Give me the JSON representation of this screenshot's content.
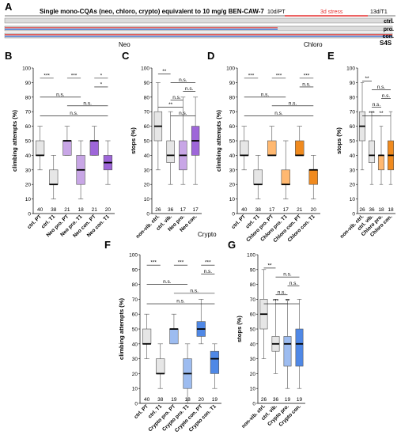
{
  "colors": {
    "gray": "#e6e6e6",
    "neo": "#c8a6e6",
    "neo_dark": "#9e66d9",
    "chloro": "#ffb870",
    "chloro_dark": "#f08a1e",
    "crypto": "#9dbcf0",
    "crypto_dark": "#4f88e6",
    "stress_red": "#e53030",
    "timeline_blue": "#5b88d8",
    "timeline_red": "#e05a5a"
  },
  "panelA": {
    "letter": "A",
    "title": "Single mono-CQAs (neo, chloro, crypto) equivalent to 10 mg/g BEN-CAW-7",
    "t_pt": "10d/PT",
    "t_stress": "3d stress",
    "t_t1": "13d/T1",
    "rows": [
      "ctrl.",
      "pro.",
      "con."
    ],
    "s4s": "S4S"
  },
  "group_labels": {
    "neo": "Neo",
    "chloro": "Chloro",
    "crypto": "Crypto"
  },
  "panelB": {
    "letter": "B",
    "ylabel": "climbing attempts (%)",
    "ticks": [
      "0",
      "10",
      "20",
      "30",
      "40",
      "50",
      "60",
      "70",
      "80",
      "90",
      "100"
    ],
    "xlabels": [
      "ctrl. PT",
      "ctrl. T1",
      "Neo pro. PT",
      "Neo pro. T1",
      "Neo con. PT",
      "Neo con. T1"
    ],
    "n": [
      "40",
      "38",
      "21",
      "18",
      "21",
      "20"
    ],
    "sig": [
      "n.s.",
      "n.s.",
      "n.s.",
      "*",
      "***",
      "***",
      "*"
    ]
  },
  "panelC": {
    "letter": "C",
    "ylabel": "stops (%)",
    "ticks": [
      "0",
      "10",
      "20",
      "30",
      "40",
      "50",
      "60",
      "70",
      "80",
      "90",
      "100"
    ],
    "xlabels": [
      "non-vib. ctrl.",
      "ctrl. vib.",
      "Neo pro.",
      "Neo con."
    ],
    "n": [
      "26",
      "36",
      "17",
      "17"
    ],
    "sig": [
      "n.s.",
      "**",
      "n.s.",
      "n.s.",
      "n.s.",
      "**"
    ]
  },
  "panelD": {
    "letter": "D",
    "ylabel": "climbing attempts (%)",
    "ticks": [
      "0",
      "10",
      "20",
      "30",
      "40",
      "50",
      "60",
      "70",
      "80",
      "90",
      "100"
    ],
    "xlabels": [
      "ctrl. PT",
      "ctrl. T1",
      "Chloro pro. PT",
      "Chloro pro. T1",
      "Chloro con. PT",
      "Chloro con. T1"
    ],
    "n": [
      "40",
      "38",
      "17",
      "17",
      "21",
      "20"
    ],
    "sig": [
      "n.s.",
      "n.s.",
      "n.s.",
      "n.s.",
      "***",
      "***",
      "***"
    ]
  },
  "panelE": {
    "letter": "E",
    "ylabel": "stops (%)",
    "ticks": [
      "0",
      "10",
      "20",
      "30",
      "40",
      "50",
      "60",
      "70",
      "80",
      "90",
      "100"
    ],
    "xlabels": [
      "non-vib. ctrl.",
      "ctrl. vib.",
      "Chloro pro.",
      "Chloro con."
    ],
    "n": [
      "26",
      "36",
      "18",
      "18"
    ],
    "sig": [
      "***",
      "**",
      "n.s.",
      "n.s.",
      "n.s.",
      "**"
    ]
  },
  "panelF": {
    "letter": "F",
    "ylabel": "climbing attempts (%)",
    "ticks": [
      "0",
      "10",
      "20",
      "30",
      "40",
      "50",
      "60",
      "70",
      "80",
      "90",
      "100"
    ],
    "xlabels": [
      "ctrl. PT",
      "ctrl. T1",
      "Crypto pro. PT",
      "Crypto pro. T1",
      "Crypto con. PT",
      "Crypto con. T1"
    ],
    "n": [
      "40",
      "38",
      "19",
      "18",
      "20",
      "19"
    ],
    "sig": [
      "n.s.",
      "n.s.",
      "n.s.",
      "n.s.",
      "***",
      "***",
      "***"
    ]
  },
  "panelG": {
    "letter": "G",
    "ylabel": "stops (%)",
    "ticks": [
      "0",
      "10",
      "20",
      "30",
      "40",
      "50",
      "60",
      "70",
      "80",
      "90",
      "100"
    ],
    "xlabels": [
      "non-vib. ctrl.",
      "ctrl. vib.",
      "Crypto pro.",
      "Crypto con."
    ],
    "n": [
      "26",
      "36",
      "19",
      "19"
    ],
    "sig": [
      "***",
      "**",
      "n.s.",
      "n.s.",
      "n.s.",
      "**"
    ]
  },
  "chart_data": [
    {
      "panel": "B",
      "type": "box",
      "ylim": [
        0,
        100
      ],
      "categories": [
        "ctrl. PT",
        "ctrl. T1",
        "Neo pro. PT",
        "Neo pro. T1",
        "Neo con. PT",
        "Neo con. T1"
      ],
      "boxes": [
        [
          30,
          40,
          40,
          50,
          60
        ],
        [
          10,
          20,
          20,
          30,
          40
        ],
        [
          40,
          40,
          50,
          50,
          60
        ],
        [
          10,
          20,
          30,
          40,
          50
        ],
        [
          40,
          40,
          50,
          50,
          60
        ],
        [
          20,
          30,
          35,
          40,
          50
        ]
      ]
    },
    {
      "panel": "C",
      "type": "box",
      "ylim": [
        0,
        100
      ],
      "categories": [
        "non-vib. ctrl.",
        "ctrl. vib.",
        "Neo pro.",
        "Neo con."
      ],
      "boxes": [
        [
          30,
          50,
          60,
          70,
          90
        ],
        [
          20,
          35,
          40,
          50,
          70
        ],
        [
          20,
          30,
          40,
          50,
          80
        ],
        [
          20,
          40,
          50,
          60,
          80
        ]
      ]
    },
    {
      "panel": "D",
      "type": "box",
      "ylim": [
        0,
        100
      ],
      "categories": [
        "ctrl. PT",
        "ctrl. T1",
        "Chloro pro. PT",
        "Chloro pro. T1",
        "Chloro con. PT",
        "Chloro con. T1"
      ],
      "boxes": [
        [
          30,
          40,
          40,
          50,
          60
        ],
        [
          10,
          20,
          20,
          30,
          40
        ],
        [
          40,
          40,
          40,
          50,
          60
        ],
        [
          10,
          20,
          20,
          30,
          50
        ],
        [
          40,
          40,
          40,
          50,
          60
        ],
        [
          10,
          20,
          30,
          30,
          40
        ]
      ]
    },
    {
      "panel": "E",
      "type": "box",
      "ylim": [
        0,
        100
      ],
      "categories": [
        "non-vib. ctrl.",
        "ctrl. vib.",
        "Chloro pro.",
        "Chloro con."
      ],
      "boxes": [
        [
          30,
          50,
          60,
          70,
          90
        ],
        [
          20,
          35,
          40,
          50,
          70
        ],
        [
          20,
          30,
          40,
          40,
          60
        ],
        [
          20,
          30,
          40,
          50,
          70
        ]
      ]
    },
    {
      "panel": "F",
      "type": "box",
      "ylim": [
        0,
        100
      ],
      "categories": [
        "ctrl. PT",
        "ctrl. T1",
        "Crypto pro. PT",
        "Crypto pro. T1",
        "Crypto con. PT",
        "Crypto con. T1"
      ],
      "boxes": [
        [
          30,
          40,
          40,
          50,
          60
        ],
        [
          10,
          20,
          20,
          30,
          40
        ],
        [
          40,
          40,
          50,
          50,
          60
        ],
        [
          0,
          10,
          20,
          30,
          40
        ],
        [
          40,
          45,
          50,
          55,
          70
        ],
        [
          10,
          20,
          30,
          35,
          40
        ]
      ]
    },
    {
      "panel": "G",
      "type": "box",
      "ylim": [
        0,
        100
      ],
      "categories": [
        "non-vib. ctrl.",
        "ctrl. vib.",
        "Crypto pro.",
        "Crypto con."
      ],
      "boxes": [
        [
          30,
          50,
          60,
          70,
          90
        ],
        [
          20,
          35,
          40,
          45,
          70
        ],
        [
          10,
          25,
          40,
          45,
          70
        ],
        [
          10,
          25,
          40,
          50,
          70
        ]
      ]
    }
  ]
}
